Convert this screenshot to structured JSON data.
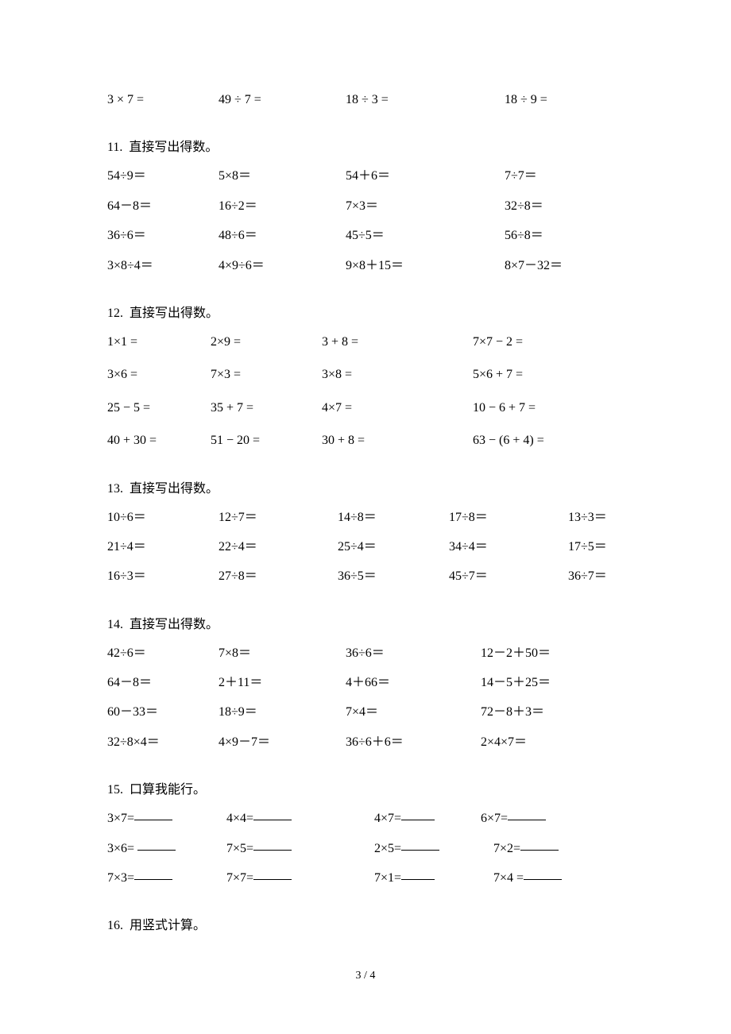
{
  "heading_prefix": "直接写出得数。",
  "heading_15": "口算我能行。",
  "heading_16": "用竖式计算。",
  "page_number": "3 / 4",
  "section_top": {
    "row": [
      "3 × 7 =",
      "49 ÷ 7 =",
      "18 ÷ 3 =",
      "18 ÷ 9 ="
    ]
  },
  "section_11": {
    "heading_number": "11.",
    "rows": [
      [
        "54÷9＝",
        "5×8＝",
        "54＋6＝",
        "7÷7＝"
      ],
      [
        "64－8＝",
        "16÷2＝",
        "7×3＝",
        "32÷8＝"
      ],
      [
        "36÷6＝",
        "48÷6＝",
        "45÷5＝",
        "56÷8＝"
      ],
      [
        "3×8÷4＝",
        "4×9÷6＝",
        "9×8＋15＝",
        "8×7－32＝"
      ]
    ]
  },
  "section_12": {
    "heading_number": "12.",
    "rows": [
      [
        "1×1 =",
        "2×9 =",
        "3 + 8 =",
        "7×7 − 2 ="
      ],
      [
        "3×6 =",
        "7×3 =",
        "3×8 =",
        "5×6 + 7 ="
      ],
      [
        "25 − 5 =",
        "35 + 7 =",
        "4×7 =",
        "10 − 6 + 7 ="
      ],
      [
        "40 + 30 =",
        "51 − 20 =",
        "30 + 8 =",
        "63 − (6 + 4) ="
      ]
    ]
  },
  "section_13": {
    "heading_number": "13.",
    "rows": [
      [
        "10÷6＝",
        "12÷7＝",
        "14÷8＝",
        "17÷8＝",
        "13÷3＝"
      ],
      [
        "21÷4＝",
        "22÷4＝",
        "25÷4＝",
        "34÷4＝",
        "17÷5＝"
      ],
      [
        "16÷3＝",
        "27÷8＝",
        "36÷5＝",
        "45÷7＝",
        "36÷7＝"
      ]
    ]
  },
  "section_14": {
    "heading_number": "14.",
    "rows": [
      [
        "42÷6＝",
        "7×8＝",
        "36÷6＝",
        "12－2＋50＝"
      ],
      [
        "64－8＝",
        "2＋11＝",
        "4＋66＝",
        "14－5＋25＝"
      ],
      [
        "60－33＝",
        "18÷9＝",
        "7×4＝",
        "72－8＋3＝"
      ],
      [
        "32÷8×4＝",
        "4×9－7＝",
        "36÷6＋6＝",
        "2×4×7＝"
      ]
    ]
  },
  "section_15": {
    "heading_number": "15.",
    "rows": [
      [
        "3×7=",
        "4×4=",
        "4×7=",
        "6×7="
      ],
      [
        "3×6=",
        "7×5=",
        "2×5=",
        "7×2="
      ],
      [
        "7×3=",
        "7×7=",
        "7×1=",
        "7×4 ="
      ]
    ]
  },
  "section_16": {
    "heading_number": "16."
  }
}
